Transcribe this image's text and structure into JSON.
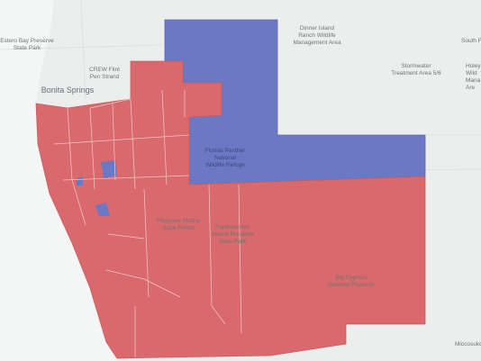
{
  "map": {
    "labels": [
      {
        "lines": [
          "Dinner Island",
          "Ranch Wildlife",
          "Management Area"
        ]
      },
      {
        "lines": [
          "South Fl"
        ]
      },
      {
        "lines": [
          "Stormwater",
          "Treatment Area 5/6"
        ]
      },
      {
        "lines": [
          "Holey",
          "Wild",
          "Mana",
          "Are"
        ]
      },
      {
        "lines": [
          "Estero Bay Preserve",
          "State Park"
        ]
      },
      {
        "lines": [
          "CREW Flint",
          "Pen Strand"
        ]
      },
      {
        "lines": [
          "Bonita Springs"
        ]
      },
      {
        "lines": [
          "Florida Panther",
          "National",
          "Wildlife Refuge"
        ]
      },
      {
        "lines": [
          "Picayune Strand",
          "State Forest"
        ]
      },
      {
        "lines": [
          "Fakahatchee",
          "Strand Preserve",
          "State Park"
        ]
      },
      {
        "lines": [
          "Big Cypress",
          "National Preserve"
        ]
      },
      {
        "lines": [
          "Miccosuke"
        ]
      }
    ]
  }
}
